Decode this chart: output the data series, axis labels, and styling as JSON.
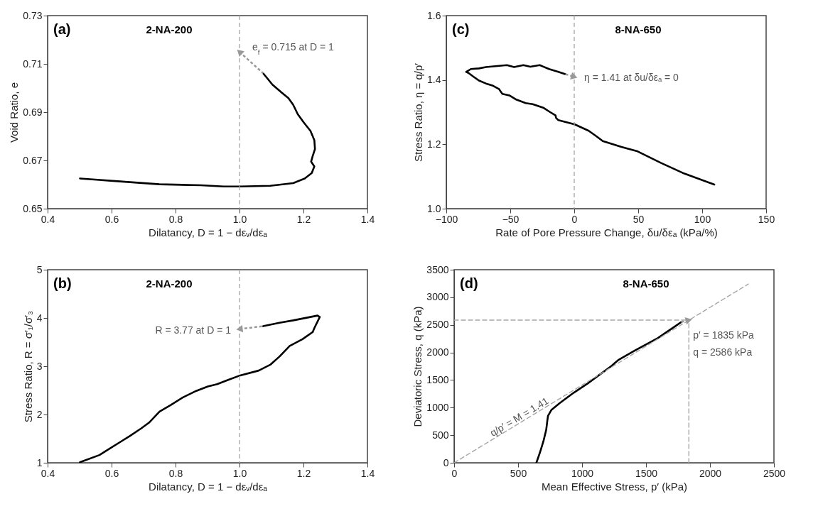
{
  "chart_data": [
    {
      "type": "line",
      "title": "(a)",
      "subtitle": "2-NA-200",
      "xlabel": "Dilatancy, D = 1 − dεᵥ/dεₐ",
      "ylabel": "Void Ratio, e",
      "xlim": [
        0.4,
        1.4
      ],
      "xticks": [
        0.4,
        0.6,
        0.8,
        {
          "value": 1,
          "label": "1.0"
        },
        1.2,
        1.4
      ],
      "ylim": [
        0.65,
        0.73
      ],
      "yticks": [
        0.65,
        0.67,
        0.69,
        0.71,
        0.73
      ],
      "line_style": "solid",
      "ref_lines": [
        {
          "axis": "x",
          "value": 1,
          "color": "#a6a6a6",
          "line_style": "dashed"
        }
      ],
      "annotations": [
        {
          "text": "e$_{f}$ = 0.715 at D = 1",
          "x": 1,
          "y": 0.715
        }
      ],
      "series": [
        {
          "color": "#000000",
          "x": [
            0.501,
            0.627,
            0.75,
            0.879,
            0.951,
            1.002,
            1.096,
            1.168,
            1.204,
            1.226,
            1.234,
            1.224,
            1.229,
            1.236,
            1.234,
            1.222,
            1.2,
            1.182,
            1.168,
            1.153,
            1.132,
            1.103,
            1.074
          ],
          "values": [
            0.6625,
            0.6613,
            0.6601,
            0.6597,
            0.6592,
            0.6592,
            0.6595,
            0.6606,
            0.6625,
            0.6648,
            0.6675,
            0.6695,
            0.6719,
            0.6747,
            0.6784,
            0.6822,
            0.6859,
            0.6892,
            0.693,
            0.6958,
            0.6981,
            0.7014,
            0.7061
          ]
        }
      ]
    },
    {
      "type": "line",
      "title": "(c)",
      "subtitle": "8-NA-650",
      "xlabel": "Rate of Pore Pressure Change, δu/δεₐ (kPa/%)",
      "ylabel": "Stress Ratio, η = q/p′",
      "xlim": [
        -100,
        150
      ],
      "xticks": [
        {
          "value": -100,
          "label": "−100"
        },
        {
          "value": -50,
          "label": "−50"
        },
        0,
        50,
        100,
        150
      ],
      "ylim": [
        1,
        1.6
      ],
      "yticks": [
        {
          "value": 1,
          "label": "1.0"
        },
        1.2,
        1.4,
        1.6
      ],
      "line_style": "solid",
      "ref_lines": [
        {
          "axis": "x",
          "value": 0,
          "color": "#a6a6a6",
          "line_style": "dashed"
        }
      ],
      "annotations": [
        {
          "text": "η = 1.41 at δu/δεₐ = 0",
          "x": 0,
          "y": 1.41
        }
      ],
      "series": [
        {
          "color": "#000000",
          "x": [
            109.5,
            86.1,
            67.9,
            49.6,
            36.9,
            22.3,
            17.7,
            11.3,
            0.4,
            -12.4,
            -14.2,
            -14.6,
            -18.8,
            -24.3,
            -32.5,
            -38,
            -45.3,
            -50.7,
            -56.2,
            -58.9,
            -63.5,
            -69,
            -74.5,
            -79,
            -82.7,
            -84.5,
            -80.8,
            -74.5,
            -69,
            -52.6,
            -47,
            -39.8,
            -34.3,
            -27,
            -19.7,
            -12.4,
            -6.9
          ],
          "values": [
            1.075,
            1.109,
            1.142,
            1.178,
            1.192,
            1.21,
            1.224,
            1.242,
            1.262,
            1.275,
            1.282,
            1.29,
            1.3,
            1.314,
            1.325,
            1.328,
            1.339,
            1.352,
            1.357,
            1.372,
            1.382,
            1.389,
            1.398,
            1.411,
            1.422,
            1.425,
            1.434,
            1.436,
            1.44,
            1.446,
            1.44,
            1.446,
            1.441,
            1.446,
            1.434,
            1.425,
            1.418
          ]
        }
      ]
    },
    {
      "type": "line",
      "title": "(b)",
      "subtitle": "2-NA-200",
      "xlabel": "Dilatancy, D = 1 − dεᵥ/dεₐ",
      "ylabel": "Stress Ratio, R = σ′₁/σ′₃",
      "xlim": [
        0.4,
        1.4
      ],
      "xticks": [
        0.4,
        0.6,
        0.8,
        {
          "value": 1,
          "label": "1.0"
        },
        1.2,
        1.4
      ],
      "ylim": [
        1,
        5
      ],
      "yticks": [
        1,
        2,
        3,
        4,
        5
      ],
      "line_style": "solid",
      "ref_lines": [
        {
          "axis": "x",
          "value": 1,
          "color": "#a6a6a6",
          "line_style": "dashed"
        }
      ],
      "annotations": [
        {
          "text": "R = 3.77 at D = 1",
          "x": 1,
          "y": 3.77
        }
      ],
      "series": [
        {
          "color": "#000000",
          "x": [
            0.501,
            0.562,
            0.591,
            0.627,
            0.656,
            0.692,
            0.717,
            0.75,
            0.786,
            0.822,
            0.865,
            0.901,
            0.93,
            0.966,
            0.998,
            1.06,
            1.096,
            1.125,
            1.157,
            1.197,
            1.229,
            1.234,
            1.251,
            1.244,
            1.168,
            1.125,
            1.074
          ],
          "values": [
            1.01,
            1.16,
            1.28,
            1.43,
            1.55,
            1.71,
            1.83,
            2.06,
            2.2,
            2.35,
            2.49,
            2.58,
            2.63,
            2.72,
            2.8,
            2.91,
            3.03,
            3.2,
            3.42,
            3.56,
            3.71,
            3.79,
            4.02,
            4.05,
            3.95,
            3.9,
            3.83
          ]
        }
      ]
    },
    {
      "type": "line",
      "title": "(d)",
      "subtitle": "8-NA-650",
      "xlabel": "Mean Effective Stress, p′ (kPa)",
      "ylabel": "Deviatoric Stress, q (kPa)",
      "xlim": [
        0,
        2500
      ],
      "xticks": [
        0,
        500,
        1000,
        1500,
        2000,
        2500
      ],
      "ylim": [
        0,
        3500
      ],
      "yticks": [
        0,
        500,
        1000,
        1500,
        2000,
        2500,
        3000,
        3500
      ],
      "line_style": "solid",
      "annotations": [
        {
          "text": "p′ = 1835 kPa",
          "x": 1835,
          "y": 2586
        },
        {
          "text": "q = 2586 kPa",
          "x": 1835,
          "y": 2586
        },
        "q/p′ = M = 1.41"
      ],
      "series": [
        {
          "color": "#000000",
          "x": [
            643,
            670,
            698,
            720,
            729,
            734,
            761,
            825,
            935,
            1045,
            1227,
            1282,
            1410,
            1592,
            1775
          ],
          "values": [
            0,
            180,
            390,
            600,
            770,
            850,
            960,
            1080,
            1270,
            1440,
            1750,
            1860,
            2030,
            2260,
            2550
          ]
        },
        {
          "color": "#a6a6a6",
          "line_style": "dashed",
          "x": [
            0,
            2300
          ],
          "values": [
            0,
            3240
          ]
        },
        {
          "color": "#a6a6a6",
          "line_style": "dashed",
          "x": [
            0,
            1835
          ],
          "values": [
            2586,
            2586
          ]
        },
        {
          "color": "#a6a6a6",
          "line_style": "dashed",
          "x": [
            1835,
            1835
          ],
          "values": [
            0,
            2586
          ]
        }
      ]
    }
  ]
}
